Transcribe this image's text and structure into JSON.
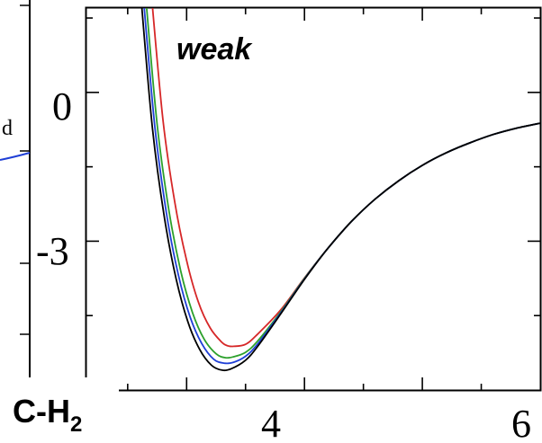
{
  "chart_data": {
    "type": "line",
    "annotation": "weak",
    "system_label": "C-H",
    "system_label_subscript": "2",
    "left_panel_fragment_text": "d",
    "x_ticks": [
      "4",
      "6"
    ],
    "y_ticks": [
      "0",
      "-3"
    ],
    "xlim": [
      2.15,
      6.0
    ],
    "ylim": [
      -6.0,
      1.7
    ],
    "grid": false,
    "series": [
      {
        "color": "#d62728",
        "points": [
          [
            2.7,
            2.0
          ],
          [
            2.8,
            -0.57
          ],
          [
            2.9,
            -2.22
          ],
          [
            3.0,
            -3.39
          ],
          [
            3.1,
            -4.23
          ],
          [
            3.2,
            -4.75
          ],
          [
            3.3,
            -5.04
          ],
          [
            3.35,
            -5.11
          ],
          [
            3.4,
            -5.12
          ],
          [
            3.5,
            -5.08
          ],
          [
            3.6,
            -4.88
          ],
          [
            3.8,
            -4.38
          ],
          [
            4.0,
            -3.74
          ],
          [
            4.2,
            -3.14
          ],
          [
            4.4,
            -2.6
          ],
          [
            4.6,
            -2.15
          ],
          [
            4.8,
            -1.78
          ],
          [
            5.0,
            -1.47
          ],
          [
            5.2,
            -1.22
          ],
          [
            5.4,
            -1.02
          ],
          [
            5.6,
            -0.85
          ],
          [
            5.8,
            -0.72
          ],
          [
            6.0,
            -0.62
          ]
        ]
      },
      {
        "color": "#2ca02c",
        "points": [
          [
            2.65,
            2.0
          ],
          [
            2.75,
            -0.64
          ],
          [
            2.85,
            -2.38
          ],
          [
            2.95,
            -3.6
          ],
          [
            3.05,
            -4.44
          ],
          [
            3.15,
            -4.98
          ],
          [
            3.25,
            -5.27
          ],
          [
            3.33,
            -5.35
          ],
          [
            3.4,
            -5.33
          ],
          [
            3.5,
            -5.24
          ],
          [
            3.6,
            -5.02
          ],
          [
            3.8,
            -4.42
          ],
          [
            4.0,
            -3.75
          ],
          [
            4.2,
            -3.14
          ],
          [
            4.4,
            -2.6
          ],
          [
            4.6,
            -2.15
          ],
          [
            4.8,
            -1.78
          ],
          [
            5.0,
            -1.47
          ],
          [
            5.2,
            -1.22
          ],
          [
            5.4,
            -1.02
          ],
          [
            5.6,
            -0.85
          ],
          [
            5.8,
            -0.72
          ],
          [
            6.0,
            -0.62
          ]
        ]
      },
      {
        "color": "#1f3fd6",
        "points": [
          [
            2.63,
            2.0
          ],
          [
            2.73,
            -0.68
          ],
          [
            2.83,
            -2.45
          ],
          [
            2.93,
            -3.68
          ],
          [
            3.03,
            -4.53
          ],
          [
            3.13,
            -5.07
          ],
          [
            3.23,
            -5.38
          ],
          [
            3.32,
            -5.46
          ],
          [
            3.4,
            -5.44
          ],
          [
            3.5,
            -5.32
          ],
          [
            3.6,
            -5.08
          ],
          [
            3.8,
            -4.44
          ],
          [
            4.0,
            -3.76
          ],
          [
            4.2,
            -3.14
          ],
          [
            4.4,
            -2.6
          ],
          [
            4.6,
            -2.15
          ],
          [
            4.8,
            -1.78
          ],
          [
            5.0,
            -1.47
          ],
          [
            5.2,
            -1.22
          ],
          [
            5.4,
            -1.02
          ],
          [
            5.6,
            -0.85
          ],
          [
            5.8,
            -0.72
          ],
          [
            6.0,
            -0.62
          ]
        ]
      },
      {
        "color": "#000000",
        "points": [
          [
            2.61,
            2.0
          ],
          [
            2.71,
            -0.72
          ],
          [
            2.81,
            -2.5
          ],
          [
            2.91,
            -3.75
          ],
          [
            3.01,
            -4.62
          ],
          [
            3.11,
            -5.18
          ],
          [
            3.21,
            -5.5
          ],
          [
            3.3,
            -5.6
          ],
          [
            3.38,
            -5.57
          ],
          [
            3.5,
            -5.4
          ],
          [
            3.6,
            -5.13
          ],
          [
            3.8,
            -4.46
          ],
          [
            4.0,
            -3.77
          ],
          [
            4.2,
            -3.14
          ],
          [
            4.4,
            -2.6
          ],
          [
            4.6,
            -2.15
          ],
          [
            4.8,
            -1.78
          ],
          [
            5.0,
            -1.47
          ],
          [
            5.2,
            -1.22
          ],
          [
            5.4,
            -1.02
          ],
          [
            5.6,
            -0.85
          ],
          [
            5.8,
            -0.72
          ],
          [
            6.0,
            -0.62
          ]
        ]
      }
    ],
    "left_panel_fragment": {
      "color": "#1f3fd6"
    }
  }
}
